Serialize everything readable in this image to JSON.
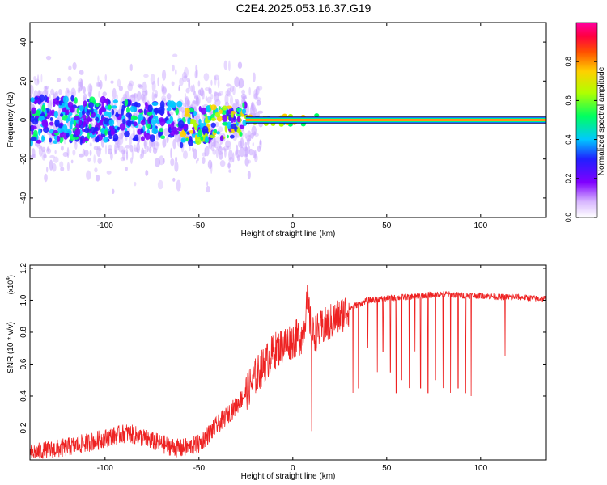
{
  "title": "C2E4.2025.053.16.37.G19",
  "chart_data": [
    {
      "type": "heatmap",
      "title": "C2E4.2025.053.16.37.G19",
      "xlabel": "Height of straight line (km)",
      "ylabel": "Frequency (Hz)",
      "xlim": [
        -140,
        135
      ],
      "ylim": [
        -50,
        50
      ],
      "xticks": [
        -100,
        -50,
        0,
        50,
        100
      ],
      "yticks": [
        -40,
        -20,
        0,
        20,
        40
      ],
      "colorbar": {
        "label": "Normalized spectral amplitude",
        "range": [
          0.0,
          1.0
        ],
        "ticks": [
          0.0,
          0.2,
          0.4,
          0.6,
          0.8
        ],
        "tick_labels": [
          "0.0",
          "0.2",
          "0.4",
          "0.6",
          "0.8"
        ],
        "colors": [
          "#ffffff",
          "#c8a0ff",
          "#7a00ff",
          "#2020ff",
          "#00c8ff",
          "#00ff60",
          "#b0ff00",
          "#ffd000",
          "#ff5000",
          "#ff0040",
          "#ff00a0"
        ]
      },
      "band": {
        "freq": 0,
        "x_start": -25,
        "x_end": 135,
        "amplitude": 1.0
      },
      "scatter_region": {
        "x_start": -140,
        "x_end": -25,
        "freq_center": 0,
        "freq_halfwidth": 12
      }
    },
    {
      "type": "line",
      "xlabel": "Height of straight line (km)",
      "ylabel": "SNR (10 * v/v)",
      "y_scale_label": "(x10",
      "y_scale_exponent": "4",
      "y_scale_close": ")",
      "xlim": [
        -140,
        135
      ],
      "ylim": [
        0.0,
        1.22
      ],
      "xticks": [
        -100,
        -50,
        0,
        50,
        100
      ],
      "yticks": [
        0.2,
        0.4,
        0.6,
        0.8,
        1.0,
        1.2
      ],
      "ytick_labels": [
        "0.2",
        "0.4",
        "0.6",
        "0.8",
        "1.0",
        "1.2"
      ],
      "color": "#ee2222",
      "envelope": {
        "x": [
          -140,
          -120,
          -105,
          -95,
          -88,
          -80,
          -70,
          -60,
          -50,
          -40,
          -30,
          -25,
          -20,
          -15,
          -10,
          -5,
          0,
          5,
          8,
          10,
          15,
          20,
          25,
          30,
          40,
          50,
          60,
          70,
          80,
          90,
          100,
          110,
          120,
          130,
          135
        ],
        "y": [
          0.04,
          0.08,
          0.12,
          0.15,
          0.17,
          0.14,
          0.1,
          0.07,
          0.1,
          0.22,
          0.34,
          0.42,
          0.52,
          0.6,
          0.68,
          0.72,
          0.75,
          0.78,
          1.0,
          0.78,
          0.82,
          0.86,
          0.9,
          0.95,
          1.0,
          1.01,
          1.02,
          1.03,
          1.04,
          1.03,
          1.03,
          1.02,
          1.02,
          1.01,
          1.01
        ]
      },
      "dropouts": [
        {
          "x": 10,
          "y": 0.18
        },
        {
          "x": 32,
          "y": 0.42
        },
        {
          "x": 35,
          "y": 0.45
        },
        {
          "x": 40,
          "y": 0.7
        },
        {
          "x": 45,
          "y": 0.55
        },
        {
          "x": 48,
          "y": 0.68
        },
        {
          "x": 52,
          "y": 0.55
        },
        {
          "x": 55,
          "y": 0.42
        },
        {
          "x": 58,
          "y": 0.5
        },
        {
          "x": 62,
          "y": 0.45
        },
        {
          "x": 65,
          "y": 0.68
        },
        {
          "x": 68,
          "y": 0.45
        },
        {
          "x": 72,
          "y": 0.42
        },
        {
          "x": 76,
          "y": 0.5
        },
        {
          "x": 80,
          "y": 0.45
        },
        {
          "x": 84,
          "y": 0.42
        },
        {
          "x": 88,
          "y": 0.45
        },
        {
          "x": 92,
          "y": 0.42
        },
        {
          "x": 95,
          "y": 0.4
        },
        {
          "x": 113,
          "y": 0.65
        }
      ]
    }
  ]
}
